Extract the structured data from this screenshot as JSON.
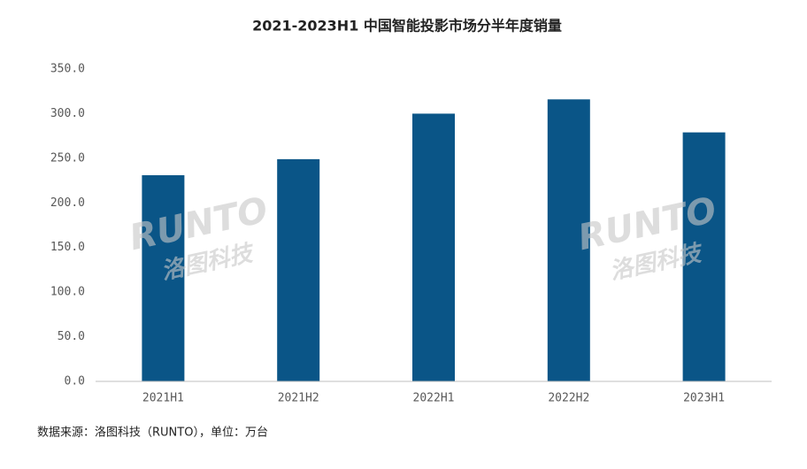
{
  "chart_data": {
    "type": "bar",
    "title": "2021-2023H1 中国智能投影市场分半年度销量",
    "categories": [
      "2021H1",
      "2021H2",
      "2022H1",
      "2022H2",
      "2023H1"
    ],
    "values": [
      231,
      249,
      300,
      316,
      279
    ],
    "color": "#0a5587",
    "ylim": [
      0,
      350
    ],
    "yticks": [
      {
        "value": 0,
        "label": "0.0"
      },
      {
        "value": 50,
        "label": "50.0"
      },
      {
        "value": 100,
        "label": "100.0"
      },
      {
        "value": 150,
        "label": "150.0"
      },
      {
        "value": 200,
        "label": "200.0"
      },
      {
        "value": 250,
        "label": "250.0"
      },
      {
        "value": 300,
        "label": "300.0"
      },
      {
        "value": 350,
        "label": "350.0"
      }
    ],
    "grid": false,
    "source_note": "数据来源：洛图科技（RUNTO），单位：万台",
    "watermark": "RUNTO",
    "watermark_cn": "洛图科技"
  }
}
